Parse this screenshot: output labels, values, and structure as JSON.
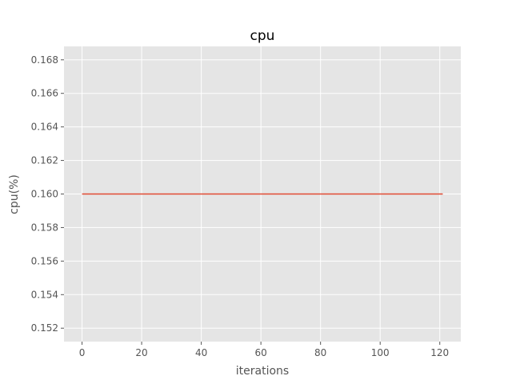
{
  "chart_data": {
    "type": "line",
    "title": "cpu",
    "xlabel": "iterations",
    "ylabel": "cpu(%)",
    "xlim": [
      -6.05,
      127.05
    ],
    "ylim": [
      0.1512,
      0.1688
    ],
    "x_ticks": [
      0,
      20,
      40,
      60,
      80,
      100,
      120
    ],
    "y_ticks": [
      0.152,
      0.154,
      0.156,
      0.158,
      0.16,
      0.162,
      0.164,
      0.166,
      0.168
    ],
    "x_tick_labels": [
      "0",
      "20",
      "40",
      "60",
      "80",
      "100",
      "120"
    ],
    "y_tick_labels": [
      "0.152",
      "0.154",
      "0.156",
      "0.158",
      "0.160",
      "0.162",
      "0.164",
      "0.166",
      "0.168"
    ],
    "grid": true,
    "series": [
      {
        "color": "#E24A33",
        "x": [
          0,
          121
        ],
        "y": [
          0.16,
          0.16
        ]
      }
    ],
    "colors": {
      "plot_background": "#E5E5E5",
      "grid": "#FFFFFF",
      "text": "#555555"
    }
  }
}
